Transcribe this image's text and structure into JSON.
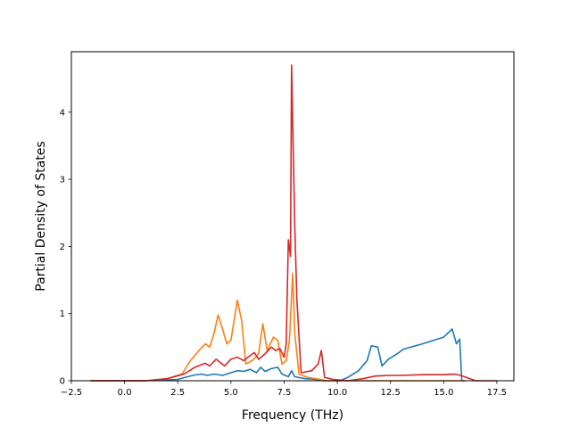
{
  "chart_data": {
    "type": "line",
    "title": "",
    "xlabel": "Frequency (THz)",
    "ylabel": "Partial Density of States",
    "xlim": [
      -2.5,
      18.3
    ],
    "ylim": [
      0,
      4.9
    ],
    "xticks": [
      -2.5,
      0.0,
      2.5,
      5.0,
      7.5,
      10.0,
      12.5,
      15.0,
      17.5
    ],
    "xtick_labels": [
      "−2.5",
      "0.0",
      "2.5",
      "5.0",
      "7.5",
      "10.0",
      "12.5",
      "15.0",
      "17.5"
    ],
    "yticks": [
      0,
      1,
      2,
      3,
      4
    ],
    "ytick_labels": [
      "0",
      "1",
      "2",
      "3",
      "4"
    ],
    "grid": false,
    "legend": "none",
    "series": [
      {
        "color": "#1f77b4",
        "points": [
          [
            -1.6,
            0.0
          ],
          [
            1.0,
            0.0
          ],
          [
            2.5,
            0.02
          ],
          [
            3.2,
            0.08
          ],
          [
            3.6,
            0.1
          ],
          [
            3.9,
            0.08
          ],
          [
            4.2,
            0.1
          ],
          [
            4.6,
            0.08
          ],
          [
            5.0,
            0.12
          ],
          [
            5.3,
            0.15
          ],
          [
            5.6,
            0.14
          ],
          [
            5.9,
            0.17
          ],
          [
            6.2,
            0.12
          ],
          [
            6.4,
            0.2
          ],
          [
            6.6,
            0.14
          ],
          [
            6.9,
            0.18
          ],
          [
            7.2,
            0.2
          ],
          [
            7.4,
            0.1
          ],
          [
            7.7,
            0.06
          ],
          [
            7.85,
            0.15
          ],
          [
            8.0,
            0.06
          ],
          [
            8.5,
            0.03
          ],
          [
            9.0,
            0.02
          ],
          [
            9.3,
            0.0
          ],
          [
            10.1,
            0.0
          ],
          [
            10.5,
            0.05
          ],
          [
            11.0,
            0.15
          ],
          [
            11.4,
            0.3
          ],
          [
            11.6,
            0.52
          ],
          [
            11.9,
            0.5
          ],
          [
            12.1,
            0.22
          ],
          [
            12.4,
            0.32
          ],
          [
            12.9,
            0.42
          ],
          [
            13.1,
            0.47
          ],
          [
            14.0,
            0.55
          ],
          [
            15.0,
            0.65
          ],
          [
            15.4,
            0.77
          ],
          [
            15.6,
            0.55
          ],
          [
            15.75,
            0.62
          ],
          [
            15.85,
            0.0
          ],
          [
            16.0,
            0.0
          ]
        ]
      },
      {
        "color": "#ff7f0e",
        "points": [
          [
            -1.6,
            0.0
          ],
          [
            1.0,
            0.0
          ],
          [
            2.0,
            0.03
          ],
          [
            2.7,
            0.1
          ],
          [
            3.1,
            0.3
          ],
          [
            3.5,
            0.45
          ],
          [
            3.8,
            0.55
          ],
          [
            4.0,
            0.5
          ],
          [
            4.2,
            0.7
          ],
          [
            4.4,
            0.98
          ],
          [
            4.6,
            0.78
          ],
          [
            4.8,
            0.55
          ],
          [
            5.0,
            0.6
          ],
          [
            5.3,
            1.2
          ],
          [
            5.5,
            0.9
          ],
          [
            5.7,
            0.25
          ],
          [
            6.0,
            0.3
          ],
          [
            6.3,
            0.4
          ],
          [
            6.5,
            0.85
          ],
          [
            6.7,
            0.45
          ],
          [
            7.0,
            0.65
          ],
          [
            7.2,
            0.6
          ],
          [
            7.4,
            0.25
          ],
          [
            7.6,
            0.3
          ],
          [
            7.75,
            0.6
          ],
          [
            7.9,
            1.6
          ],
          [
            8.0,
            0.7
          ],
          [
            8.2,
            0.1
          ],
          [
            8.6,
            0.05
          ],
          [
            9.2,
            0.02
          ],
          [
            9.5,
            0.0
          ],
          [
            16.0,
            0.0
          ]
        ]
      },
      {
        "color": "#d62728",
        "points": [
          [
            -1.6,
            0.0
          ],
          [
            1.0,
            0.0
          ],
          [
            2.0,
            0.03
          ],
          [
            2.8,
            0.1
          ],
          [
            3.3,
            0.2
          ],
          [
            3.8,
            0.26
          ],
          [
            4.0,
            0.22
          ],
          [
            4.3,
            0.32
          ],
          [
            4.7,
            0.22
          ],
          [
            5.0,
            0.32
          ],
          [
            5.3,
            0.35
          ],
          [
            5.6,
            0.3
          ],
          [
            5.8,
            0.35
          ],
          [
            6.1,
            0.42
          ],
          [
            6.3,
            0.32
          ],
          [
            6.6,
            0.4
          ],
          [
            6.9,
            0.5
          ],
          [
            7.1,
            0.45
          ],
          [
            7.3,
            0.48
          ],
          [
            7.5,
            0.35
          ],
          [
            7.6,
            0.55
          ],
          [
            7.7,
            2.1
          ],
          [
            7.8,
            1.85
          ],
          [
            7.85,
            4.7
          ],
          [
            8.0,
            2.3
          ],
          [
            8.1,
            1.2
          ],
          [
            8.3,
            0.12
          ],
          [
            8.8,
            0.15
          ],
          [
            9.1,
            0.25
          ],
          [
            9.25,
            0.45
          ],
          [
            9.4,
            0.05
          ],
          [
            9.8,
            0.02
          ],
          [
            10.5,
            0.0
          ],
          [
            11.2,
            0.03
          ],
          [
            11.8,
            0.07
          ],
          [
            12.5,
            0.08
          ],
          [
            13.0,
            0.08
          ],
          [
            14.0,
            0.09
          ],
          [
            15.0,
            0.09
          ],
          [
            15.5,
            0.1
          ],
          [
            15.8,
            0.08
          ],
          [
            16.5,
            0.0
          ],
          [
            17.5,
            0.0
          ]
        ]
      }
    ]
  }
}
